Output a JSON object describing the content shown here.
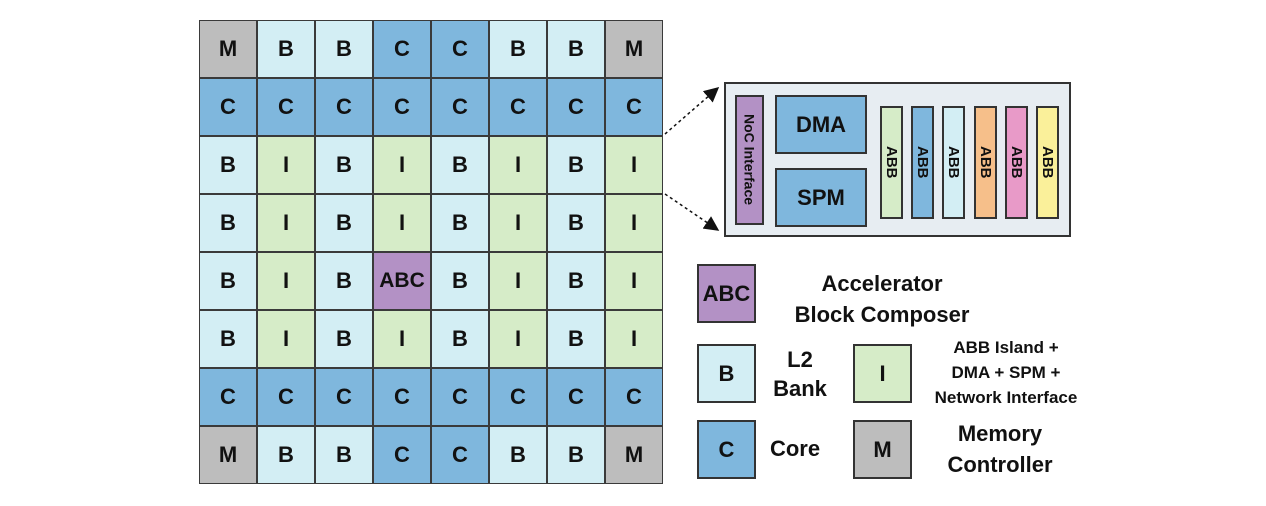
{
  "grid": {
    "rows": [
      [
        "M",
        "B",
        "B",
        "C",
        "C",
        "B",
        "B",
        "M"
      ],
      [
        "C",
        "C",
        "C",
        "C",
        "C",
        "C",
        "C",
        "C"
      ],
      [
        "B",
        "I",
        "B",
        "I",
        "B",
        "I",
        "B",
        "I"
      ],
      [
        "B",
        "I",
        "B",
        "I",
        "B",
        "I",
        "B",
        "I"
      ],
      [
        "B",
        "I",
        "B",
        "ABC",
        "B",
        "I",
        "B",
        "I"
      ],
      [
        "B",
        "I",
        "B",
        "I",
        "B",
        "I",
        "B",
        "I"
      ],
      [
        "C",
        "C",
        "C",
        "C",
        "C",
        "C",
        "C",
        "C"
      ],
      [
        "M",
        "B",
        "B",
        "C",
        "C",
        "B",
        "B",
        "M"
      ]
    ]
  },
  "detail": {
    "noc_label": "NoC Interface",
    "dma_label": "DMA",
    "spm_label": "SPM",
    "abbs": [
      {
        "label": "ABB",
        "color": "#d6ecc8"
      },
      {
        "label": "ABB",
        "color": "#7fb7dd"
      },
      {
        "label": "ABB",
        "color": "#d3eef4"
      },
      {
        "label": "ABB",
        "color": "#f6bf8a"
      },
      {
        "label": "ABB",
        "color": "#e89ac8"
      },
      {
        "label": "ABB",
        "color": "#faf09a"
      }
    ]
  },
  "legend": {
    "abc": {
      "code": "ABC",
      "line1": "Accelerator",
      "line2": "Block Composer"
    },
    "b": {
      "code": "B",
      "line1": "L2",
      "line2": "Bank"
    },
    "i": {
      "code": "I",
      "line1": "ABB Island +",
      "line2": "DMA + SPM +",
      "line3": "Network Interface"
    },
    "c": {
      "code": "C",
      "line1": "Core"
    },
    "m": {
      "code": "M",
      "line1": "Memory",
      "line2": "Controller"
    }
  },
  "colors": {
    "M": "#bdbdbd",
    "B": "#d3eef4",
    "C": "#7fb7dd",
    "I": "#d6ecc8",
    "ABC": "#b391c5",
    "panel": "#e7edf2"
  }
}
